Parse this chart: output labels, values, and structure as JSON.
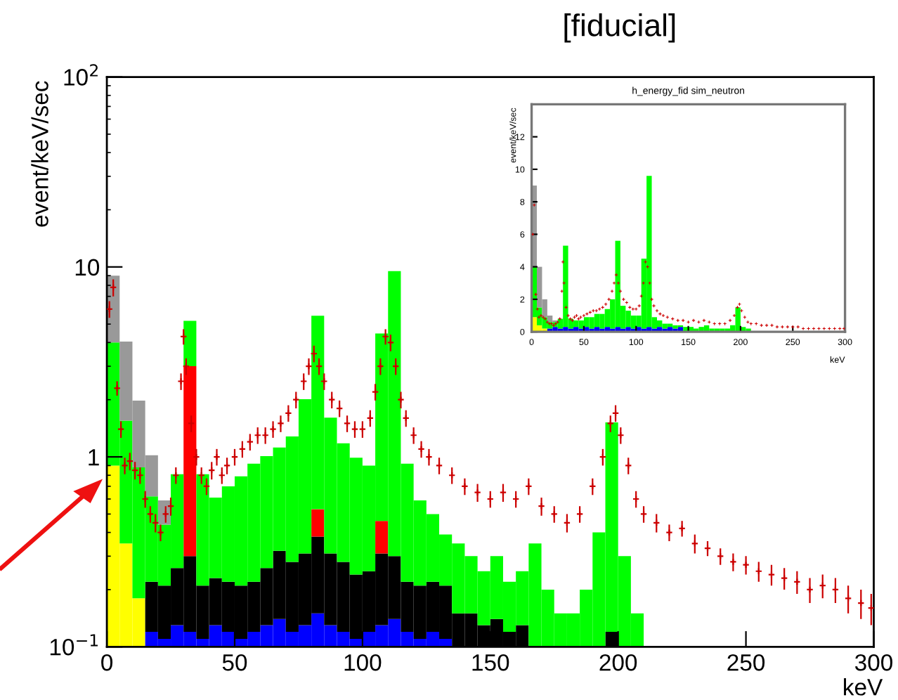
{
  "chart_data": [
    {
      "type": "bar",
      "title": "[fiducial]",
      "xlabel": "keV",
      "ylabel": "event/keV/sec",
      "log": true,
      "grid": false,
      "legend": false,
      "stacked": true,
      "xlim": [
        0,
        300
      ],
      "xticks": [
        0,
        50,
        100,
        150,
        200,
        250,
        300
      ],
      "ylim": [
        0.1,
        100
      ],
      "yticks": [
        {
          "value": 0.1,
          "label": "10$^{−1}$"
        },
        1,
        10,
        {
          "value": 100,
          "label": "10$^{2}$"
        }
      ],
      "x": [
        2.5,
        7.5,
        12.5,
        17.5,
        22.5,
        27.5,
        32.5,
        37.5,
        42.5,
        47.5,
        52.5,
        57.5,
        62.5,
        67.5,
        72.5,
        77.5,
        82.5,
        87.5,
        92.5,
        97.5,
        102.5,
        107.5,
        112.5,
        117.5,
        122.5,
        127.5,
        132.5,
        137.5,
        142.5,
        147.5,
        152.5,
        157.5,
        162.5,
        167.5,
        172.5,
        177.5,
        182.5,
        187.5,
        192.5,
        197.5,
        202.5,
        207.5
      ],
      "series": [
        {
          "color": "#ffff00",
          "values": [
            0.9,
            0.35,
            0.18,
            null,
            null,
            null,
            null,
            null,
            null,
            null,
            null,
            null,
            null,
            null,
            null,
            null,
            null,
            null,
            null,
            null,
            null,
            null,
            null,
            null,
            null,
            null,
            null,
            null,
            null,
            null,
            null,
            null,
            null,
            null,
            null,
            null,
            null,
            null,
            null,
            null,
            null,
            null
          ]
        },
        {
          "color": "#0000ff",
          "values": [
            null,
            null,
            null,
            0.12,
            0.11,
            0.13,
            0.12,
            0.11,
            0.13,
            0.12,
            0.11,
            0.12,
            0.13,
            0.14,
            0.12,
            0.13,
            0.15,
            0.13,
            0.12,
            0.11,
            0.12,
            0.13,
            0.14,
            0.12,
            0.11,
            0.12,
            0.11,
            null,
            null,
            null,
            null,
            null,
            null,
            null,
            null,
            null,
            null,
            null,
            null,
            null,
            null,
            null
          ]
        },
        {
          "color": "#000000",
          "values": [
            null,
            null,
            null,
            0.1,
            0.1,
            0.13,
            0.18,
            0.1,
            0.1,
            0.1,
            0.1,
            0.1,
            0.13,
            0.18,
            0.16,
            0.18,
            0.23,
            0.18,
            0.16,
            0.13,
            0.13,
            0.18,
            0.16,
            0.1,
            0.1,
            0.1,
            0.1,
            0.15,
            0.15,
            0.13,
            0.14,
            0.12,
            0.13,
            null,
            null,
            null,
            null,
            null,
            null,
            0.12,
            null,
            null
          ]
        },
        {
          "color": "#ff0000",
          "values": [
            null,
            null,
            null,
            null,
            null,
            null,
            2.7,
            null,
            null,
            null,
            null,
            null,
            null,
            null,
            null,
            null,
            0.15,
            null,
            null,
            null,
            null,
            0.15,
            null,
            null,
            null,
            null,
            null,
            null,
            null,
            null,
            null,
            null,
            null,
            null,
            null,
            null,
            null,
            null,
            null,
            null,
            null,
            null
          ]
        },
        {
          "color": "#00ff00",
          "values": [
            3.1,
            1.2,
            0.7,
            0.4,
            0.23,
            0.55,
            2.2,
            0.6,
            0.38,
            0.48,
            0.58,
            0.7,
            0.75,
            0.8,
            1,
            1.7,
            5,
            1.3,
            0.9,
            0.75,
            0.65,
            4,
            9.2,
            0.7,
            0.38,
            0.28,
            0.18,
            0.2,
            0.15,
            0.12,
            0.16,
            0.1,
            0.12,
            0.35,
            0.2,
            0.15,
            0.15,
            0.2,
            0.4,
            1.4,
            0.3,
            0.15
          ]
        },
        {
          "color": "#999999",
          "values": [
            5,
            2.5,
            1.1,
            0.4,
            0.15,
            null,
            null,
            null,
            null,
            null,
            null,
            null,
            null,
            null,
            null,
            null,
            null,
            null,
            null,
            null,
            null,
            null,
            null,
            null,
            null,
            null,
            null,
            null,
            null,
            null,
            null,
            null,
            null,
            null,
            null,
            null,
            null,
            null,
            null,
            null,
            null,
            null
          ]
        },
        {
          "type": "scatter",
          "color": "#cc0000",
          "marker": "cross",
          "x": [
            1,
            2.5,
            4,
            5.5,
            7,
            9,
            11,
            13,
            15,
            17,
            19,
            21,
            23,
            25,
            27,
            29,
            30,
            31,
            33,
            35,
            37,
            39,
            41,
            43,
            45,
            47,
            50,
            53,
            56,
            59,
            62,
            65,
            68,
            71,
            74,
            77,
            79,
            81,
            83,
            85,
            88,
            91,
            94,
            97,
            100,
            103,
            105,
            107,
            109,
            111,
            113,
            115,
            117,
            120,
            123,
            126,
            130,
            135,
            140,
            145,
            150,
            155,
            160,
            165,
            170,
            175,
            180,
            185,
            190,
            194,
            197,
            199,
            201,
            204,
            207,
            210,
            215,
            220,
            225,
            230,
            235,
            240,
            245,
            250,
            255,
            260,
            265,
            270,
            275,
            280,
            285,
            290,
            295,
            299
          ],
          "values": [
            6,
            7.8,
            2.3,
            1.4,
            0.9,
            0.95,
            0.85,
            0.8,
            0.6,
            0.5,
            0.45,
            0.4,
            0.5,
            0.55,
            0.8,
            2.5,
            4.3,
            3,
            1.5,
            1,
            0.8,
            0.7,
            0.85,
            1,
            0.8,
            0.9,
            1,
            1.1,
            1.2,
            1.3,
            1.3,
            1.4,
            1.5,
            1.7,
            2,
            2.5,
            3,
            3.5,
            3,
            2.5,
            2,
            1.8,
            1.5,
            1.4,
            1.4,
            1.6,
            2.2,
            3,
            4.3,
            4,
            3,
            2,
            1.6,
            1.3,
            1.1,
            1,
            0.9,
            0.8,
            0.7,
            0.65,
            0.6,
            0.65,
            0.6,
            0.7,
            0.55,
            0.5,
            0.45,
            0.5,
            0.7,
            1,
            1.5,
            1.7,
            1.3,
            0.9,
            0.6,
            0.5,
            0.45,
            0.4,
            0.42,
            0.35,
            0.33,
            0.3,
            0.28,
            0.27,
            0.25,
            0.24,
            0.23,
            0.22,
            0.2,
            0.21,
            0.2,
            0.18,
            0.17,
            0.16
          ],
          "errors": [
            0.6,
            0.8,
            0.2,
            0.14,
            0.09,
            0.1,
            0.09,
            0.08,
            0.06,
            0.05,
            0.05,
            0.04,
            0.05,
            0.06,
            0.08,
            0.25,
            0.4,
            0.3,
            0.15,
            0.1,
            0.08,
            0.07,
            0.09,
            0.1,
            0.08,
            0.09,
            0.1,
            0.11,
            0.12,
            0.13,
            0.13,
            0.14,
            0.15,
            0.17,
            0.2,
            0.25,
            0.3,
            0.35,
            0.3,
            0.25,
            0.2,
            0.18,
            0.15,
            0.14,
            0.14,
            0.16,
            0.22,
            0.3,
            0.4,
            0.4,
            0.3,
            0.2,
            0.16,
            0.13,
            0.11,
            0.1,
            0.09,
            0.08,
            0.07,
            0.07,
            0.06,
            0.07,
            0.06,
            0.07,
            0.06,
            0.05,
            0.05,
            0.05,
            0.07,
            0.1,
            0.15,
            0.17,
            0.13,
            0.09,
            0.06,
            0.05,
            0.05,
            0.04,
            0.04,
            0.04,
            0.03,
            0.03,
            0.03,
            0.03,
            0.03,
            0.03,
            0.03,
            0.03,
            0.03,
            0.03,
            0.03,
            0.03,
            0.03,
            0.03
          ]
        }
      ]
    },
    {
      "type": "bar",
      "title": "h_energy_fid sim_neutron",
      "xlabel": "keV",
      "ylabel": "event/keV/sec",
      "grid": false,
      "legend": false,
      "stacked": true,
      "xlim": [
        0,
        300
      ],
      "xticks": [
        0,
        50,
        100,
        150,
        200,
        250,
        300
      ],
      "ylim": [
        0,
        14
      ],
      "yticks": [
        0,
        2,
        4,
        6,
        8,
        10,
        12
      ],
      "x": [
        2.5,
        7.5,
        12.5,
        17.5,
        22.5,
        27.5,
        32.5,
        37.5,
        42.5,
        47.5,
        52.5,
        57.5,
        62.5,
        67.5,
        72.5,
        77.5,
        82.5,
        87.5,
        92.5,
        97.5,
        102.5,
        107.5,
        112.5,
        117.5,
        122.5,
        127.5,
        132.5,
        137.5,
        142.5,
        147.5,
        152.5,
        157.5,
        162.5,
        167.5,
        172.5,
        177.5,
        182.5,
        187.5,
        192.5,
        197.5,
        202.5,
        207.5
      ],
      "series": [
        {
          "color": "#ffff00",
          "values": [
            0.9,
            0.4,
            0.2,
            null,
            null,
            null,
            null,
            null,
            null,
            null,
            null,
            null,
            null,
            null,
            null,
            null,
            null,
            null,
            null,
            null,
            null,
            null,
            null,
            null,
            null,
            null,
            null,
            null,
            null,
            null,
            null,
            null,
            null,
            null,
            null,
            null,
            null,
            null,
            null,
            null,
            null,
            null
          ]
        },
        {
          "color": "#0000ff",
          "values": [
            null,
            null,
            null,
            0.2,
            0.3,
            0.2,
            0.3,
            0.2,
            0.3,
            0.2,
            0.3,
            0.2,
            0.3,
            0.2,
            0.3,
            0.2,
            0.3,
            0.2,
            0.3,
            0.2,
            0.3,
            0.2,
            0.3,
            0.2,
            0.3,
            0.2,
            0.3,
            0.2,
            0.3,
            null,
            null,
            null,
            null,
            null,
            null,
            null,
            null,
            null,
            null,
            null,
            null,
            null
          ]
        },
        {
          "color": "#00ff00",
          "values": [
            3.1,
            1.1,
            0.7,
            0.4,
            0.3,
            0.6,
            5,
            0.6,
            0.4,
            0.5,
            0.6,
            0.7,
            0.8,
            0.9,
            1.1,
            1.8,
            5.3,
            1.4,
            1,
            0.8,
            0.7,
            4.3,
            9.3,
            0.7,
            0.4,
            0.3,
            0.2,
            0.2,
            0.1,
            0.3,
            0.3,
            0.2,
            0.3,
            0.4,
            0.2,
            0.2,
            0.2,
            0.2,
            0.4,
            1.5,
            0.3,
            0.2
          ]
        },
        {
          "color": "#999999",
          "values": [
            5,
            2.5,
            1.1,
            0.4,
            0.1,
            null,
            null,
            null,
            null,
            null,
            null,
            null,
            null,
            null,
            null,
            null,
            null,
            null,
            null,
            null,
            null,
            null,
            null,
            null,
            null,
            null,
            null,
            null,
            null,
            null,
            null,
            null,
            null,
            null,
            null,
            null,
            null,
            null,
            null,
            null,
            null,
            null
          ]
        },
        {
          "type": "scatter",
          "color": "#cc0000",
          "marker": "cross",
          "x": [
            1,
            2.5,
            4,
            5.5,
            7,
            9,
            11,
            13,
            15,
            17,
            19,
            21,
            23,
            25,
            27,
            29,
            30,
            31,
            33,
            35,
            37,
            39,
            41,
            43,
            45,
            47,
            50,
            53,
            56,
            59,
            62,
            65,
            68,
            71,
            74,
            77,
            79,
            81,
            83,
            85,
            88,
            91,
            94,
            97,
            100,
            103,
            105,
            107,
            109,
            111,
            113,
            115,
            117,
            120,
            123,
            126,
            130,
            135,
            140,
            145,
            150,
            155,
            160,
            165,
            170,
            175,
            180,
            185,
            190,
            194,
            197,
            199,
            201,
            204,
            207,
            210,
            215,
            220,
            225,
            230,
            235,
            240,
            245,
            250,
            255,
            260,
            265,
            270,
            275,
            280,
            285,
            290,
            295,
            299
          ],
          "values": [
            6,
            7.8,
            2.3,
            1.4,
            0.9,
            1,
            0.9,
            0.8,
            0.6,
            0.5,
            0.5,
            0.4,
            0.5,
            0.6,
            0.8,
            2.5,
            4.3,
            3,
            1.5,
            1,
            0.8,
            0.7,
            0.9,
            1,
            0.8,
            0.9,
            1,
            1.1,
            1.2,
            1.3,
            1.3,
            1.4,
            1.5,
            1.7,
            2,
            2.5,
            3,
            3.5,
            3,
            2.5,
            2,
            1.8,
            1.5,
            1.4,
            1.4,
            1.6,
            2.2,
            3,
            4.3,
            4,
            3,
            2,
            1.6,
            1.3,
            1.1,
            1,
            0.9,
            0.8,
            0.7,
            0.7,
            0.6,
            0.7,
            0.6,
            0.7,
            0.6,
            0.5,
            0.5,
            0.5,
            0.7,
            1,
            1.5,
            1.7,
            1.3,
            0.9,
            0.6,
            0.5,
            0.5,
            0.4,
            0.4,
            0.4,
            0.3,
            0.3,
            0.3,
            0.3,
            0.3,
            0.2,
            0.2,
            0.2,
            0.2,
            0.2,
            0.2,
            0.2,
            0.2,
            0.2
          ]
        }
      ]
    }
  ]
}
